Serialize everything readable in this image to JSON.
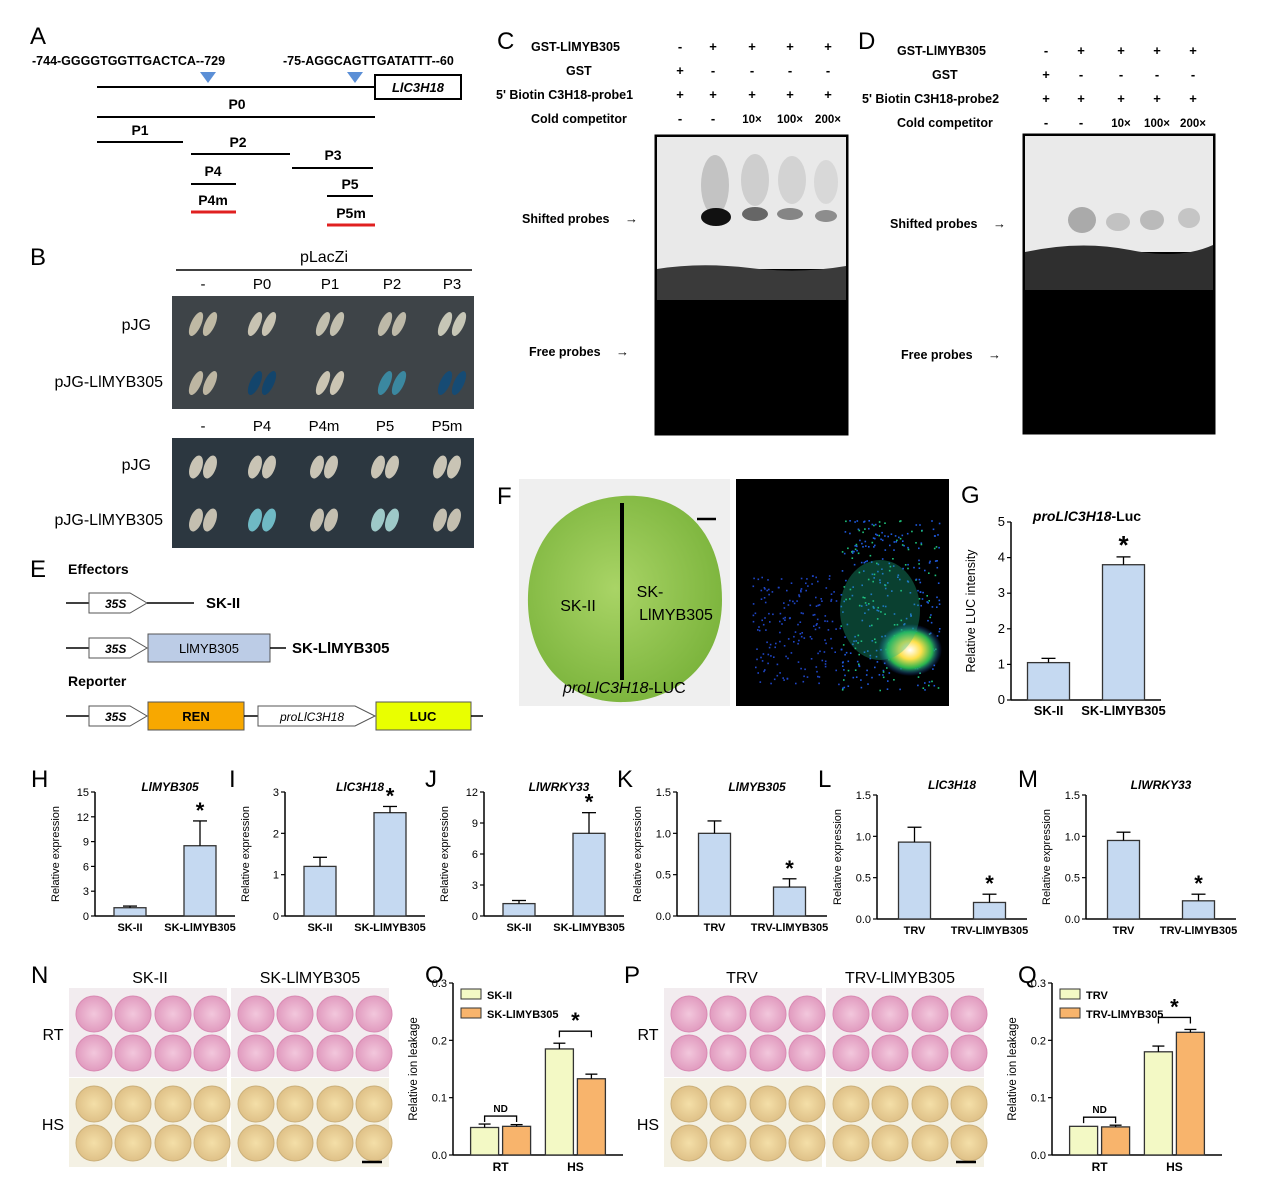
{
  "panels": {
    "A": {
      "label": "A",
      "seq_left": "-744-GGGGTGGTTGACTCA--729",
      "seq_right": "-75-AGGCAGTTGATATTT--60",
      "gene": "LlC3H18",
      "fragments": [
        "P0",
        "P1",
        "P2",
        "P3",
        "P4",
        "P4m",
        "P5",
        "P5m"
      ]
    },
    "B": {
      "label": "B",
      "vector": "pLacZi",
      "cols_top": [
        "-",
        "P0",
        "P1",
        "P2",
        "P3"
      ],
      "cols_bottom": [
        "-",
        "P4",
        "P4m",
        "P5",
        "P5m"
      ],
      "rows": [
        "pJG",
        "pJG-LlMYB305"
      ]
    },
    "C": {
      "label": "C",
      "rows": [
        {
          "name": "GST-LlMYB305",
          "vals": [
            "-",
            "+",
            "+",
            "+",
            "+"
          ]
        },
        {
          "name": "GST",
          "vals": [
            "+",
            "-",
            "-",
            "-",
            "-"
          ]
        },
        {
          "name": "5' Biotin C3H18-probe1",
          "vals": [
            "+",
            "+",
            "+",
            "+",
            "+"
          ]
        },
        {
          "name": "Cold competitor",
          "vals": [
            "-",
            "-",
            "10×",
            "100×",
            "200×"
          ]
        }
      ],
      "shifted": "Shifted probes",
      "free": "Free probes"
    },
    "D": {
      "label": "D",
      "rows": [
        {
          "name": "GST-LlMYB305",
          "vals": [
            "-",
            "+",
            "+",
            "+",
            "+"
          ]
        },
        {
          "name": "GST",
          "vals": [
            "+",
            "-",
            "-",
            "-",
            "-"
          ]
        },
        {
          "name": "5' Biotin C3H18-probe2",
          "vals": [
            "+",
            "+",
            "+",
            "+",
            "+"
          ]
        },
        {
          "name": "Cold competitor",
          "vals": [
            "-",
            "-",
            "10×",
            "100×",
            "200×"
          ]
        }
      ],
      "shifted": "Shifted probes",
      "free": "Free probes"
    },
    "E": {
      "label": "E",
      "effectors": "Effectors",
      "reporter": "Reporter",
      "promoter": "35S",
      "sk2": "SK-II",
      "gene_box": "LlMYB305",
      "sk_myb": "SK-LlMYB305",
      "ren": "REN",
      "pro": "proLlC3H18",
      "luc": "LUC"
    },
    "F": {
      "label": "F",
      "left_text": "SK-II",
      "right_text_1": "SK-",
      "right_text_2": "LlMYB305",
      "bottom_italic": "proLlC3H18",
      "bottom_suffix": "-LUC"
    },
    "N": {
      "label": "N",
      "cond1": "SK-II",
      "cond2": "SK-LlMYB305",
      "rt": "RT",
      "hs": "HS"
    },
    "P": {
      "label": "P",
      "cond1": "TRV",
      "cond2": "TRV-LlMYB305",
      "rt": "RT",
      "hs": "HS"
    }
  },
  "chart_data": [
    {
      "panel": "G",
      "type": "bar",
      "title": "proLlC3H18-Luc",
      "ylabel": "Relative LUC intensity",
      "categories": [
        "SK-II",
        "SK-LlMYB305"
      ],
      "values": [
        1.05,
        3.8
      ],
      "errors": [
        0.12,
        0.22
      ],
      "ylim": [
        0,
        5
      ],
      "yticks": [
        0,
        1,
        2,
        3,
        4,
        5
      ],
      "yticklabels": [
        "0",
        "1",
        "2",
        "3",
        "4",
        "5"
      ],
      "sig": "*",
      "color": "#c5d9f1"
    },
    {
      "panel": "H",
      "type": "bar",
      "title": "LlMYB305",
      "ylabel": "Relative expression",
      "categories": [
        "SK-II",
        "SK-LlMYB305"
      ],
      "values": [
        1.0,
        8.5
      ],
      "errors": [
        0.2,
        3.0
      ],
      "ylim": [
        0,
        15
      ],
      "yticks": [
        0,
        3,
        6,
        9,
        12,
        15
      ],
      "yticklabels": [
        "0",
        "3",
        "6",
        "9",
        "12",
        "15"
      ],
      "sig": "*",
      "color": "#c5d9f1"
    },
    {
      "panel": "I",
      "type": "bar",
      "title": "LlC3H18",
      "ylabel": "Relative expression",
      "categories": [
        "SK-II",
        "SK-LlMYB305"
      ],
      "values": [
        1.2,
        2.5
      ],
      "errors": [
        0.22,
        0.15
      ],
      "ylim": [
        0,
        3
      ],
      "yticks": [
        0,
        1,
        2,
        3
      ],
      "yticklabels": [
        "0",
        "1",
        "2",
        "3"
      ],
      "sig": "*",
      "color": "#c5d9f1"
    },
    {
      "panel": "J",
      "type": "bar",
      "title": "LlWRKY33",
      "ylabel": "Relative expression",
      "categories": [
        "SK-II",
        "SK-LlMYB305"
      ],
      "values": [
        1.2,
        8.0
      ],
      "errors": [
        0.3,
        2.0
      ],
      "ylim": [
        0,
        12
      ],
      "yticks": [
        0,
        3,
        6,
        9,
        12
      ],
      "yticklabels": [
        "0",
        "3",
        "6",
        "9",
        "12"
      ],
      "sig": "*",
      "color": "#c5d9f1"
    },
    {
      "panel": "K",
      "type": "bar",
      "title": "LlMYB305",
      "ylabel": "Relative expression",
      "categories": [
        "TRV",
        "TRV-LlMYB305"
      ],
      "values": [
        1.0,
        0.35
      ],
      "errors": [
        0.15,
        0.1
      ],
      "ylim": [
        0,
        1.5
      ],
      "yticks": [
        0,
        0.5,
        1.0,
        1.5
      ],
      "yticklabels": [
        "0.0",
        "0.5",
        "1.0",
        "1.5"
      ],
      "sig": "*",
      "color": "#c5d9f1"
    },
    {
      "panel": "L",
      "type": "bar",
      "title": "LlC3H18",
      "ylabel": "Relative expression",
      "categories": [
        "TRV",
        "TRV-LlMYB305"
      ],
      "values": [
        0.93,
        0.2
      ],
      "errors": [
        0.18,
        0.1
      ],
      "ylim": [
        0,
        1.5
      ],
      "yticks": [
        0,
        0.5,
        1.0,
        1.5
      ],
      "yticklabels": [
        "0.0",
        "0.5",
        "1.0",
        "1.5"
      ],
      "sig": "*",
      "color": "#c5d9f1"
    },
    {
      "panel": "M",
      "type": "bar",
      "title": "LlWRKY33",
      "ylabel": "Relative expression",
      "categories": [
        "TRV",
        "TRV-LlMYB305"
      ],
      "values": [
        0.95,
        0.22
      ],
      "errors": [
        0.1,
        0.08
      ],
      "ylim": [
        0,
        1.5
      ],
      "yticks": [
        0,
        0.5,
        1.0,
        1.5
      ],
      "yticklabels": [
        "0.0",
        "0.5",
        "1.0",
        "1.5"
      ],
      "sig": "*",
      "color": "#c5d9f1"
    },
    {
      "panel": "O",
      "type": "bar",
      "ylabel": "Relative ion leakage",
      "categories": [
        "RT",
        "HS"
      ],
      "series": [
        {
          "name": "SK-II",
          "values": [
            0.048,
            0.185
          ],
          "errors": [
            0.006,
            0.01
          ],
          "color": "#f3f9c5"
        },
        {
          "name": "SK-LlMYB305",
          "values": [
            0.05,
            0.133
          ],
          "errors": [
            0.003,
            0.008
          ],
          "color": "#f8b46c"
        }
      ],
      "ylim": [
        0,
        0.3
      ],
      "yticks": [
        0,
        0.1,
        0.2,
        0.3
      ],
      "yticklabels": [
        "0.0",
        "0.1",
        "0.2",
        "0.3"
      ],
      "annotations": [
        {
          "group": 0,
          "text": "ND"
        },
        {
          "group": 1,
          "text": "*"
        }
      ],
      "legend": "top-left"
    },
    {
      "panel": "Q",
      "type": "bar",
      "ylabel": "Relative ion leakage",
      "categories": [
        "RT",
        "HS"
      ],
      "series": [
        {
          "name": "TRV",
          "values": [
            0.05,
            0.18
          ],
          "errors": [
            0.0,
            0.01
          ],
          "color": "#f3f9c5"
        },
        {
          "name": "TRV-LlMYB305",
          "values": [
            0.049,
            0.214
          ],
          "errors": [
            0.003,
            0.005
          ],
          "color": "#f8b46c"
        }
      ],
      "ylim": [
        0,
        0.3
      ],
      "yticks": [
        0,
        0.1,
        0.2,
        0.3
      ],
      "yticklabels": [
        "0.0",
        "0.1",
        "0.2",
        "0.3"
      ],
      "annotations": [
        {
          "group": 0,
          "text": "ND"
        },
        {
          "group": 1,
          "text": "*"
        }
      ],
      "legend": "top-left"
    }
  ]
}
